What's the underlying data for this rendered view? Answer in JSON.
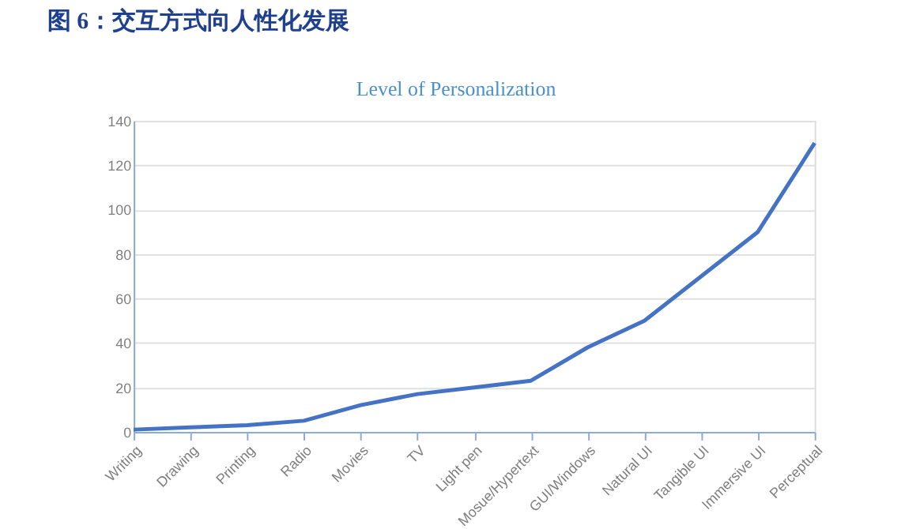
{
  "chart_data": {
    "type": "line",
    "title": "图 6：交互方式向人性化发展",
    "subtitle": "Level of Personalization",
    "categories": [
      "Writing",
      "Drawing",
      "Printing",
      "Radio",
      "Movies",
      "TV",
      "Light pen",
      "Mosue/Hypertext",
      "GUI/Windows",
      "Natural UI",
      "Tangible UI",
      "Immersive UI",
      "Perceptual"
    ],
    "series": [
      {
        "color": "#4472c4",
        "values": [
          1,
          2,
          3,
          5,
          12,
          17,
          20,
          23,
          38,
          50,
          70,
          90,
          130
        ]
      }
    ],
    "ylim": [
      0,
      140
    ],
    "yticks": [
      0,
      20,
      40,
      60,
      80,
      100,
      120,
      140
    ],
    "grid": "y",
    "marker": "none",
    "line_style": "solid"
  }
}
